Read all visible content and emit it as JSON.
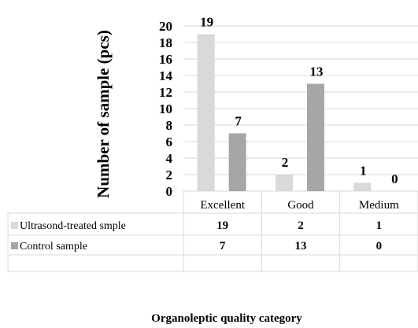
{
  "chart_data": {
    "type": "bar",
    "title": "",
    "xlabel": "Organoleptic quality category",
    "ylabel": "Number of sample (pcs)",
    "categories": [
      "Excellent",
      "Good",
      "Medium"
    ],
    "ylim": [
      0,
      20
    ],
    "yticks": [
      0,
      2,
      4,
      6,
      8,
      10,
      12,
      14,
      16,
      18,
      20
    ],
    "grid": true,
    "legend": "data-table-left",
    "series": [
      {
        "name": "Ultrasond-treated smple",
        "values": [
          19,
          2,
          1
        ],
        "color": "#d9d9d9"
      },
      {
        "name": "Control sample",
        "values": [
          7,
          13,
          0
        ],
        "color": "#a6a6a6"
      }
    ]
  }
}
